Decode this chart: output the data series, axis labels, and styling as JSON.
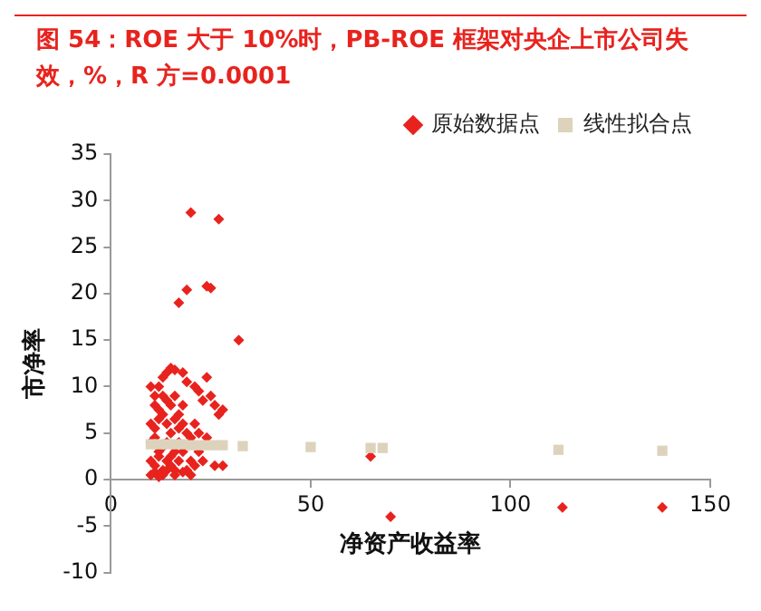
{
  "chart_data": {
    "type": "scatter",
    "title": "图 54：ROE 大于 10%时，PB-ROE 框架对央企上市公司失效，%，R 方=0.0001",
    "xlabel": "净资产收益率",
    "ylabel": "市净率",
    "xlim": [
      0,
      150
    ],
    "xticks": [
      0,
      50,
      100,
      150
    ],
    "ylim": [
      -10,
      35
    ],
    "yticks": [
      -10,
      -5,
      0,
      5,
      10,
      15,
      20,
      25,
      30,
      35
    ],
    "grid": false,
    "legend": "top right",
    "series": [
      {
        "name": "原始数据点",
        "color": "#e8231e",
        "marker": "diamond",
        "x": [
          20,
          27,
          19,
          24,
          25,
          17,
          32,
          14,
          15,
          16,
          13,
          12,
          11,
          18,
          19,
          21,
          24,
          25,
          23,
          26,
          27,
          28,
          22,
          10,
          11,
          12,
          13,
          14,
          15,
          16,
          17,
          18,
          10,
          11,
          12,
          13,
          14,
          15,
          16,
          17,
          18,
          19,
          20,
          21,
          22,
          10,
          11,
          12,
          13,
          14,
          15,
          16,
          17,
          18,
          20,
          22,
          24,
          10,
          11,
          12,
          13,
          14,
          15,
          16,
          17,
          19,
          21,
          23,
          26,
          28,
          10,
          11,
          12,
          13,
          14,
          16,
          18,
          20,
          70,
          113,
          138,
          65
        ],
        "values": [
          28.7,
          28,
          20.4,
          20.8,
          20.6,
          19,
          15,
          11.5,
          12,
          11.8,
          11,
          10,
          9,
          11.5,
          10.5,
          10,
          11,
          9,
          8.5,
          8,
          7,
          7.5,
          9.5,
          10,
          8,
          7.5,
          9,
          8.5,
          8,
          9,
          7,
          8,
          6,
          5.5,
          6.5,
          7,
          6,
          5,
          6.5,
          5.5,
          6,
          5,
          4.5,
          6,
          5,
          4,
          4.5,
          3,
          3.5,
          4,
          2.5,
          3,
          4,
          3,
          2,
          3,
          4.5,
          2,
          1.5,
          2.5,
          1,
          2,
          1.5,
          1,
          2,
          1,
          1.5,
          2,
          1.5,
          1.5,
          0.5,
          0.8,
          0.3,
          0.5,
          1,
          0.5,
          0.8,
          0.5,
          -4,
          -3,
          -3,
          2.5
        ]
      },
      {
        "name": "线性拟合点",
        "color": "#ddd3bd",
        "marker": "square",
        "x": [
          10,
          12,
          14,
          16,
          18,
          20,
          22,
          24,
          26,
          28,
          33,
          50,
          65,
          68,
          112,
          138
        ],
        "values": [
          3.8,
          3.8,
          3.8,
          3.8,
          3.8,
          3.7,
          3.7,
          3.7,
          3.7,
          3.7,
          3.6,
          3.5,
          3.4,
          3.4,
          3.2,
          3.1
        ]
      }
    ]
  }
}
